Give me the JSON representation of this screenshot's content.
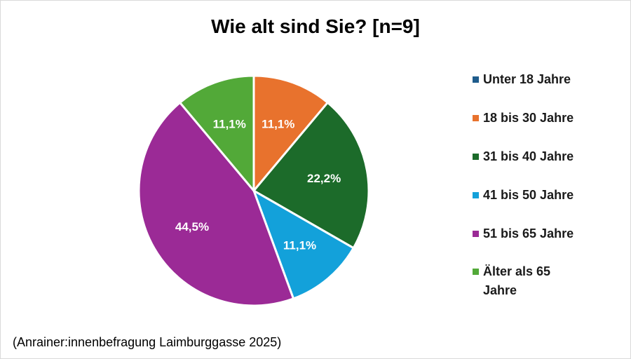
{
  "chart_data": {
    "type": "pie",
    "title": "Wie alt sind Sie? [n=9]",
    "slices": [
      {
        "label": "Unter 18 Jahre",
        "value": 0.0,
        "display": "",
        "color": "#1F5C8C"
      },
      {
        "label": "18 bis 30 Jahre",
        "value": 11.1,
        "display": "11,1%",
        "color": "#E8722D"
      },
      {
        "label": "31 bis 40 Jahre",
        "value": 22.2,
        "display": "22,2%",
        "color": "#1C6B2A"
      },
      {
        "label": "41 bis 50 Jahre",
        "value": 11.1,
        "display": "11,1%",
        "color": "#13A1DA"
      },
      {
        "label": "51 bis 65 Jahre",
        "value": 44.5,
        "display": "44,5%",
        "color": "#9B2A96"
      },
      {
        "label": "Älter als 65 Jahre",
        "value": 11.1,
        "display": "11,1%",
        "color": "#52A938"
      }
    ],
    "legend_position": "right"
  },
  "footnote": "(Anrainer:innenbefragung Laimburggasse 2025)"
}
